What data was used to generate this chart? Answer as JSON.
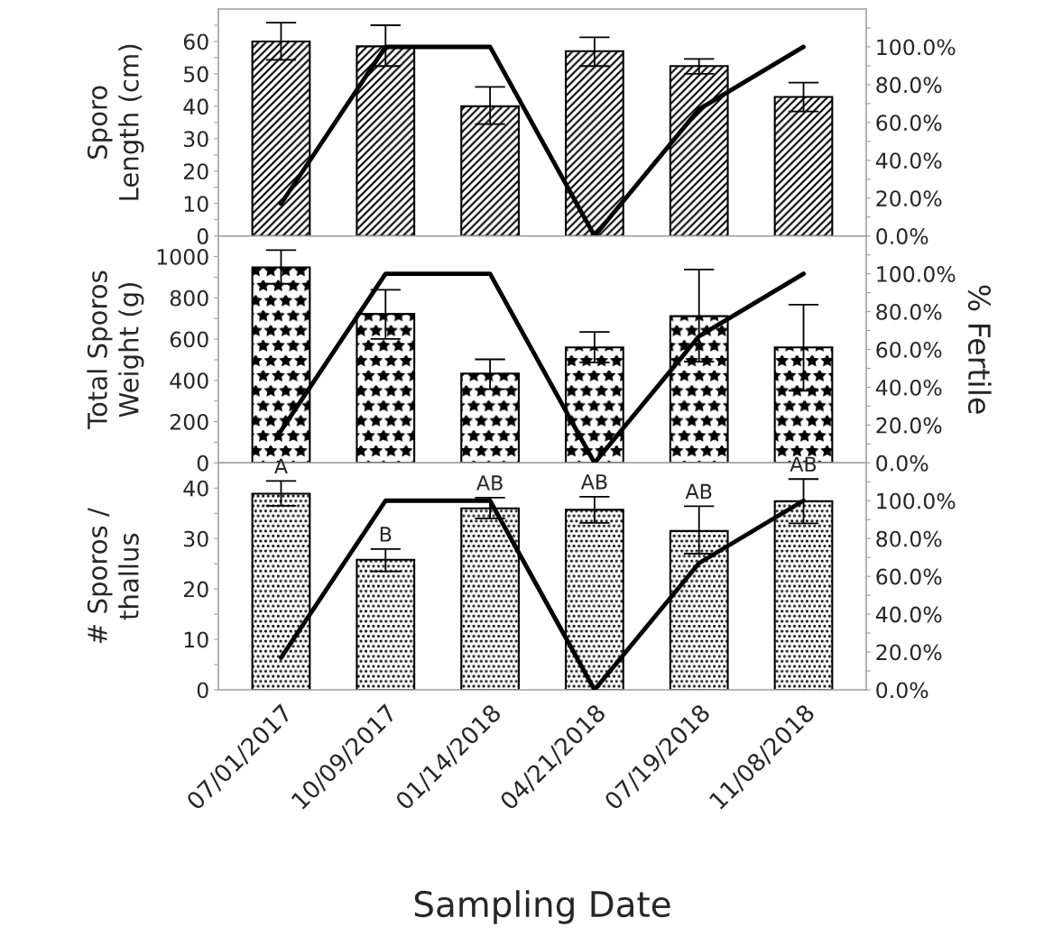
{
  "chart_data": [
    {
      "type": "bar",
      "ylabel": "Sporo\nLength (cm)",
      "tick_labels": "y",
      "ylim": [
        0,
        70
      ],
      "yticks": [
        0,
        {
          "value": 5,
          "label": null
        },
        10,
        {
          "value": 15,
          "label": null
        },
        20,
        {
          "value": 25,
          "label": null
        },
        30,
        {
          "value": 35,
          "label": null
        },
        40,
        {
          "value": 45,
          "label": null
        },
        50,
        {
          "value": 55,
          "label": null
        },
        60,
        {
          "value": 65,
          "label": null
        }
      ],
      "y2lim": [
        0,
        120
      ],
      "y2ticks": [
        {
          "value": 0,
          "label": "0.0%"
        },
        {
          "value": 10,
          "label": null
        },
        {
          "value": 20,
          "label": "20.0%"
        },
        {
          "value": 30,
          "label": null
        },
        {
          "value": 40,
          "label": "40.0%"
        },
        {
          "value": 50,
          "label": null
        },
        {
          "value": 60,
          "label": "60.0%"
        },
        {
          "value": 70,
          "label": null
        },
        {
          "value": 80,
          "label": "80.0%"
        },
        {
          "value": 90,
          "label": null
        },
        {
          "value": 100,
          "label": "100.0%"
        },
        {
          "value": 110,
          "label": null
        }
      ],
      "marker": "none",
      "legend": false,
      "series": [
        {
          "color": "#000000",
          "values": [
            60,
            58.5,
            40,
            57,
            52.4,
            42.9
          ],
          "errors": [
            [
              54.3,
              65.8
            ],
            [
              52.4,
              65
            ],
            [
              34.5,
              46
            ],
            [
              52.4,
              61.3
            ],
            [
              50,
              54.6
            ],
            [
              38.4,
              47.3
            ]
          ]
        },
        {
          "type": "line",
          "axis": "y2",
          "color": "#000000",
          "values": [
            17,
            100,
            100,
            0,
            67,
            100
          ]
        }
      ]
    },
    {
      "type": "bar",
      "ylabel": "Total Sporos\nWeight (g)",
      "y2label": "% Fertile",
      "tick_labels": "y",
      "ylim": [
        0,
        1100
      ],
      "yticks": [
        0,
        {
          "value": 100,
          "label": null
        },
        200,
        {
          "value": 300,
          "label": null
        },
        400,
        {
          "value": 500,
          "label": null
        },
        600,
        {
          "value": 700,
          "label": null
        },
        800,
        {
          "value": 900,
          "label": null
        },
        1000
      ],
      "y2lim": [
        0,
        120
      ],
      "y2ticks": [
        {
          "value": 0,
          "label": "0.0%"
        },
        {
          "value": 10,
          "label": null
        },
        {
          "value": 20,
          "label": "20.0%"
        },
        {
          "value": 30,
          "label": null
        },
        {
          "value": 40,
          "label": "40.0%"
        },
        {
          "value": 50,
          "label": null
        },
        {
          "value": 60,
          "label": "60.0%"
        },
        {
          "value": 70,
          "label": null
        },
        {
          "value": 80,
          "label": "80.0%"
        },
        {
          "value": 90,
          "label": null
        },
        {
          "value": 100,
          "label": "100.0%"
        },
        {
          "value": 110,
          "label": null
        }
      ],
      "marker": "none",
      "legend": false,
      "series": [
        {
          "color": "#000000",
          "values": [
            948,
            722,
            433,
            560,
            711,
            560
          ],
          "errors": [
            [
              868,
              1031
            ],
            [
              601,
              839
            ],
            [
              357,
              502
            ],
            [
              487,
              635
            ],
            [
              491,
              937
            ],
            [
              350,
              767
            ]
          ]
        },
        {
          "type": "line",
          "axis": "y2",
          "color": "#000000",
          "values": [
            17,
            100,
            100,
            0,
            67,
            100
          ]
        }
      ]
    },
    {
      "type": "bar",
      "ylabel": "# Sporos /\nthallus",
      "xlabel": "Sampling Date",
      "categories": [
        "07/01/2017",
        "10/09/2017",
        "01/14/2018",
        "04/21/2018",
        "07/19/2018",
        "11/08/2018"
      ],
      "ylim": [
        0,
        45
      ],
      "yticks": [
        0,
        {
          "value": 5,
          "label": null
        },
        10,
        {
          "value": 15,
          "label": null
        },
        20,
        {
          "value": 25,
          "label": null
        },
        30,
        {
          "value": 35,
          "label": null
        },
        40
      ],
      "y2lim": [
        0,
        120
      ],
      "y2ticks": [
        {
          "value": 0,
          "label": "0.0%"
        },
        {
          "value": 10,
          "label": null
        },
        {
          "value": 20,
          "label": "20.0%"
        },
        {
          "value": 30,
          "label": null
        },
        {
          "value": 40,
          "label": "40.0%"
        },
        {
          "value": 50,
          "label": null
        },
        {
          "value": 60,
          "label": "60.0%"
        },
        {
          "value": 70,
          "label": null
        },
        {
          "value": 80,
          "label": "80.0%"
        },
        {
          "value": 90,
          "label": null
        },
        {
          "value": 100,
          "label": "100.0%"
        },
        {
          "value": 110,
          "label": null
        }
      ],
      "marker": "none",
      "legend": false,
      "series": [
        {
          "color": "#000000",
          "values": [
            38.9,
            25.8,
            36,
            35.7,
            31.5,
            37.4
          ],
          "errors": [
            [
              36.5,
              41.4
            ],
            [
              23.5,
              27.9
            ],
            [
              34,
              38.1
            ],
            [
              33.1,
              38.3
            ],
            [
              27,
              36.4
            ],
            [
              33,
              41.8
            ]
          ],
          "value_labels": [
            "A",
            "B",
            "AB",
            "AB",
            "AB",
            "AB"
          ]
        },
        {
          "type": "line",
          "axis": "y2",
          "color": "#000000",
          "values": [
            17,
            100,
            100,
            0,
            67,
            100
          ]
        }
      ]
    }
  ]
}
